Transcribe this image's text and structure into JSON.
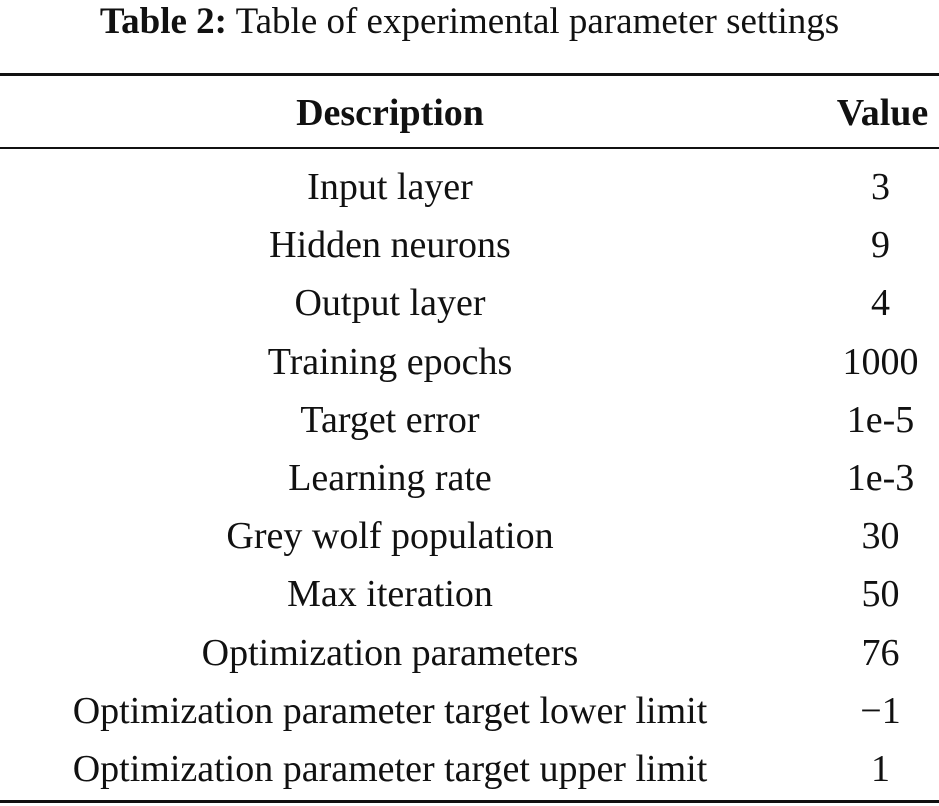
{
  "caption": {
    "label": "Table 2:",
    "text": "Table of experimental parameter settings"
  },
  "columns": [
    "Description",
    "Value"
  ],
  "rows": [
    {
      "description": "Input layer",
      "value": "3"
    },
    {
      "description": "Hidden neurons",
      "value": "9"
    },
    {
      "description": "Output layer",
      "value": "4"
    },
    {
      "description": "Training epochs",
      "value": "1000"
    },
    {
      "description": "Target error",
      "value": "1e-5"
    },
    {
      "description": "Learning rate",
      "value": "1e-3"
    },
    {
      "description": "Grey wolf population",
      "value": "30"
    },
    {
      "description": "Max iteration",
      "value": "50"
    },
    {
      "description": "Optimization parameters",
      "value": "76"
    },
    {
      "description": "Optimization parameter target lower limit",
      "value": "−1"
    },
    {
      "description": "Optimization parameter target upper limit",
      "value": "1"
    }
  ]
}
